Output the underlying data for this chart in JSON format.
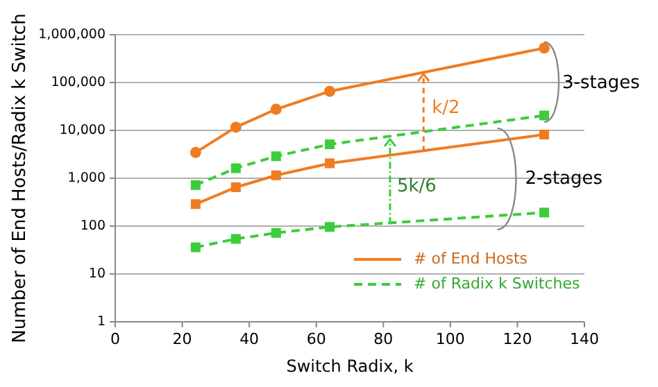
{
  "chart_data": {
    "type": "line",
    "xlabel": "Switch Radix, k",
    "ylabel": "Number of End Hosts/Radix k Switch",
    "log": "y",
    "xlim": [
      0,
      140
    ],
    "xticks": [
      0,
      20,
      40,
      60,
      80,
      100,
      120,
      140
    ],
    "ylim": [
      1,
      1000000
    ],
    "yticks": [
      {
        "value": 1,
        "label": "1"
      },
      {
        "value": 10,
        "label": "10"
      },
      {
        "value": 100,
        "label": "100"
      },
      {
        "value": 1000,
        "label": "1,000"
      },
      {
        "value": 10000,
        "label": "10,000"
      },
      {
        "value": 100000,
        "label": "100,000"
      },
      {
        "value": 1000000,
        "label": "1,000,000"
      }
    ],
    "grid": "y",
    "legend": "bottom right",
    "series": [
      {
        "name": "# of End Hosts",
        "color": "#f07c22",
        "x": [
          24,
          36,
          48,
          64,
          128
        ],
        "values": [
          3456,
          11664,
          27648,
          65536,
          524288
        ],
        "marker": "circle",
        "line_style": "solid"
      },
      {
        "color": "#f07c22",
        "x": [
          24,
          36,
          48,
          64,
          128
        ],
        "values": [
          288,
          648,
          1152,
          2048,
          8192
        ],
        "marker": "square",
        "line_style": "solid"
      },
      {
        "name": "# of Radix k Switches",
        "color": "#3ccc3c",
        "x": [
          24,
          36,
          48,
          64,
          128
        ],
        "values": [
          720,
          1620,
          2880,
          5120,
          20480
        ],
        "marker": "square",
        "line_style": "dashed"
      },
      {
        "color": "#3ccc3c",
        "x": [
          24,
          36,
          48,
          64,
          128
        ],
        "values": [
          36,
          54,
          72,
          96,
          192
        ],
        "marker": "square",
        "line_style": "dashed"
      }
    ],
    "annotations": [
      "k/2",
      "5k/6",
      "3-stages",
      "2-stages"
    ]
  }
}
